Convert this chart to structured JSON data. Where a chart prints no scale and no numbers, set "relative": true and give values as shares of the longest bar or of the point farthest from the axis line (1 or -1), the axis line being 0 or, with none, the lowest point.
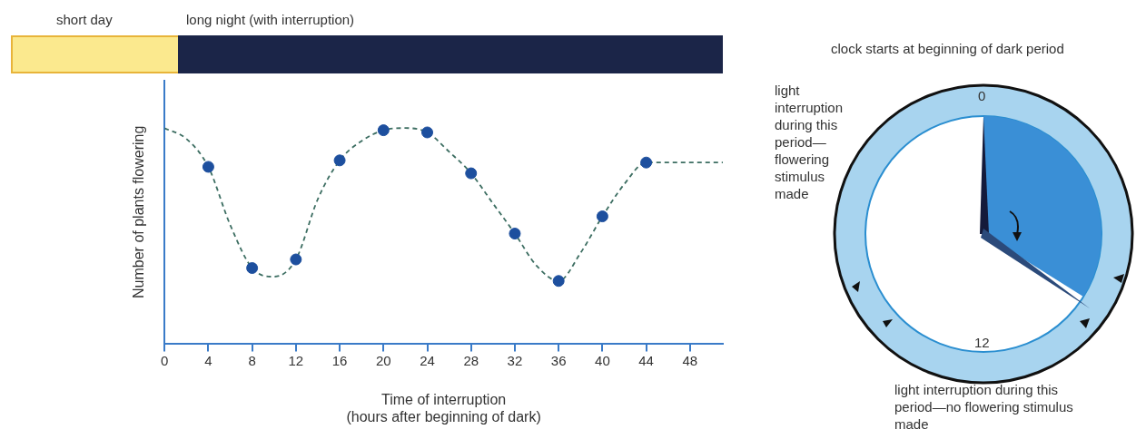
{
  "chart_data": {
    "type": "scatter",
    "relative": true,
    "xlabel": "Time of interruption\n(hours after beginning of dark)",
    "ylabel": "Number of plants flowering",
    "xlim": [
      0,
      51
    ],
    "xticks": [
      0,
      4,
      8,
      12,
      16,
      20,
      24,
      28,
      32,
      36,
      40,
      44,
      48
    ],
    "annotations": [
      "short day",
      "long night (with interruption)",
      "clock starts at beginning of dark period",
      "0",
      "12",
      "light interruption during this period—flowering stimulus made",
      "light interruption during this period—no flowering stimulus made"
    ],
    "series": [
      {
        "type": "line",
        "color": "#3d6e62",
        "line_style": "dashed",
        "marker": "none",
        "x": [
          0,
          2,
          4,
          6,
          8,
          10,
          12,
          14,
          16,
          18,
          20,
          22,
          24,
          26,
          28,
          30,
          32,
          34,
          36,
          38,
          40,
          42,
          44,
          51
        ],
        "values": [
          1.0,
          0.95,
          0.82,
          0.55,
          0.35,
          0.31,
          0.39,
          0.67,
          0.85,
          0.94,
          0.99,
          1.0,
          0.98,
          0.89,
          0.79,
          0.65,
          0.51,
          0.36,
          0.29,
          0.42,
          0.59,
          0.74,
          0.84,
          0.84
        ]
      },
      {
        "type": "scatter",
        "color": "#1d4f9e",
        "marker": "circle",
        "x": [
          4,
          8,
          12,
          16,
          20,
          24,
          28,
          32,
          36,
          40,
          44
        ],
        "values": [
          0.82,
          0.35,
          0.39,
          0.85,
          0.99,
          0.98,
          0.79,
          0.51,
          0.29,
          0.59,
          0.84
        ]
      }
    ]
  }
}
